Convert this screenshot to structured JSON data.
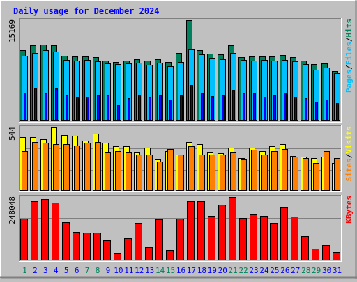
{
  "title": "Daily usage for December 2024",
  "colors": {
    "background": "#c0c0c0",
    "panel": "#c0c0c0",
    "hits": "#00805c",
    "files": "#00c0ff",
    "pages": "#0000ff",
    "visits": "#ffff00",
    "sites": "#ff8000",
    "kbytes": "#ff0000",
    "title": "#0000ff",
    "weekend_day": "#00805c",
    "weekday": "#0000ff"
  },
  "chart_data": [
    {
      "type": "bar",
      "panel": "hits",
      "ylabel_parts": [
        "Pages",
        "/",
        "Files",
        "/",
        "Hits"
      ],
      "ylabel_colors": [
        "#00c0ff",
        "#000000",
        "#00c0ff",
        "#000000",
        "#00805c"
      ],
      "max_label": "15169",
      "ylim": [
        0,
        15169
      ],
      "categories": [
        "1",
        "2",
        "3",
        "4",
        "5",
        "6",
        "7",
        "8",
        "9",
        "10",
        "11",
        "12",
        "13",
        "14",
        "15",
        "16",
        "17",
        "18",
        "19",
        "20",
        "21",
        "22",
        "23",
        "24",
        "25",
        "26",
        "27",
        "28",
        "29",
        "30",
        "31"
      ],
      "series": [
        {
          "name": "Hits",
          "values": [
            10700,
            11400,
            11500,
            11400,
            9800,
            9700,
            9700,
            9600,
            9100,
            8900,
            9100,
            9300,
            9100,
            9300,
            8900,
            10300,
            15169,
            10700,
            10100,
            10000,
            11400,
            9600,
            9700,
            9700,
            9700,
            9900,
            9600,
            9100,
            8600,
            8700,
            7500
          ]
        },
        {
          "name": "Files",
          "values": [
            9800,
            10300,
            10700,
            10500,
            9200,
            9100,
            9200,
            9000,
            8700,
            8600,
            8700,
            8800,
            8500,
            8800,
            8300,
            8900,
            10800,
            10000,
            9400,
            9300,
            10200,
            9200,
            9100,
            9200,
            9100,
            9200,
            9000,
            8600,
            7700,
            8100,
            7200
          ]
        },
        {
          "name": "Pages",
          "values": [
            4300,
            4900,
            4200,
            4900,
            3900,
            3600,
            3700,
            3900,
            3900,
            2400,
            3500,
            3900,
            3600,
            3900,
            3200,
            3900,
            5400,
            4200,
            3800,
            3900,
            4700,
            4200,
            4200,
            3700,
            3900,
            4300,
            3700,
            3400,
            2900,
            3200,
            2700
          ]
        }
      ]
    },
    {
      "type": "bar",
      "panel": "visits",
      "ylabel_parts": [
        "Sites",
        "/",
        "Visits"
      ],
      "ylabel_colors": [
        "#ff8000",
        "#000000",
        "#ffff00"
      ],
      "max_label": "544",
      "ylim": [
        0,
        544
      ],
      "categories": [
        "1",
        "2",
        "3",
        "4",
        "5",
        "6",
        "7",
        "8",
        "9",
        "10",
        "11",
        "12",
        "13",
        "14",
        "15",
        "16",
        "17",
        "18",
        "19",
        "20",
        "21",
        "22",
        "23",
        "24",
        "25",
        "26",
        "27",
        "28",
        "29",
        "30",
        "31"
      ],
      "series": [
        {
          "name": "Visits",
          "values": [
            460,
            460,
            440,
            544,
            480,
            470,
            430,
            490,
            410,
            380,
            380,
            330,
            370,
            270,
            340,
            310,
            420,
            400,
            330,
            320,
            370,
            280,
            370,
            340,
            380,
            400,
            300,
            290,
            280,
            290,
            240
          ]
        },
        {
          "name": "Sites",
          "values": [
            340,
            420,
            410,
            400,
            400,
            390,
            410,
            420,
            330,
            340,
            330,
            310,
            310,
            250,
            360,
            310,
            380,
            310,
            310,
            310,
            330,
            270,
            350,
            310,
            340,
            360,
            290,
            280,
            240,
            340,
            280
          ]
        }
      ]
    },
    {
      "type": "bar",
      "panel": "kbytes",
      "ylabel_parts": [
        "KBytes"
      ],
      "ylabel_colors": [
        "#ff0000"
      ],
      "max_label": "248048",
      "ylim": [
        0,
        248048
      ],
      "categories": [
        "1",
        "2",
        "3",
        "4",
        "5",
        "6",
        "7",
        "8",
        "9",
        "10",
        "11",
        "12",
        "13",
        "14",
        "15",
        "16",
        "17",
        "18",
        "19",
        "20",
        "21",
        "22",
        "23",
        "24",
        "25",
        "26",
        "27",
        "28",
        "29",
        "30",
        "31"
      ],
      "series": [
        {
          "name": "KBytes",
          "values": [
            164000,
            233000,
            240000,
            225000,
            150000,
            113000,
            108000,
            108000,
            78000,
            27000,
            88000,
            147000,
            53000,
            160000,
            40000,
            163000,
            233000,
            233000,
            174000,
            218000,
            248048,
            166000,
            181000,
            174000,
            148000,
            206000,
            172000,
            95000,
            46000,
            60000,
            33000
          ]
        }
      ]
    }
  ]
}
